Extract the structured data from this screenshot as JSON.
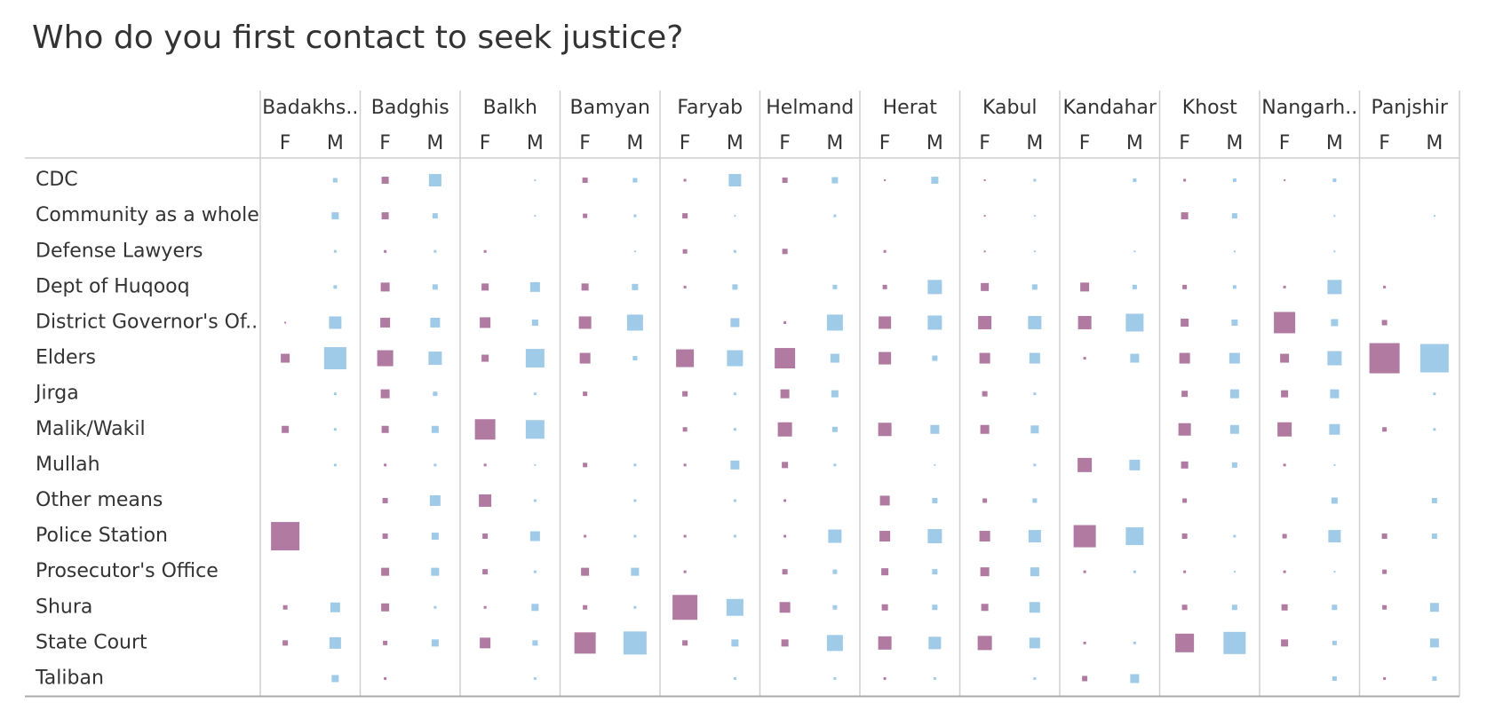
{
  "chart_data": {
    "type": "heatmap",
    "title": "Who do you first contact to seek justice?",
    "columns": [
      "Badakhs..",
      "Badghis",
      "Balkh",
      "Bamyan",
      "Faryab",
      "Helmand",
      "Herat",
      "Kabul",
      "Kandahar",
      "Khost",
      "Nangarh..",
      "Panjshir"
    ],
    "genders": [
      "F",
      "M"
    ],
    "rows": [
      "CDC",
      "Community as a whole",
      "Defense Lawyers",
      "Dept of Huqooq",
      "District Governor's Of..",
      "Elders",
      "Jirga",
      "Malik/Wakil",
      "Mullah",
      "Other means",
      "Police Station",
      "Prosecutor's Office",
      "Shura",
      "State Court",
      "Taliban"
    ],
    "colors": {
      "F": "#b07aa1",
      "M": "#a0cbe8",
      "grid": "#cfcfcf",
      "axis": "#aaaaaa"
    },
    "size_encoding": "square area proportional to share of respondents",
    "values": [
      [
        [
          0,
          5
        ],
        [
          8,
          14
        ],
        [
          0,
          2
        ],
        [
          6,
          5
        ],
        [
          3,
          14
        ],
        [
          6,
          7
        ],
        [
          2,
          8
        ],
        [
          2,
          3
        ],
        [
          0,
          4
        ],
        [
          3,
          4
        ],
        [
          2,
          4
        ],
        [
          0,
          0
        ]
      ],
      [
        [
          0,
          8
        ],
        [
          8,
          6
        ],
        [
          0,
          2
        ],
        [
          5,
          3
        ],
        [
          6,
          2
        ],
        [
          0,
          3
        ],
        [
          0,
          0
        ],
        [
          2,
          2
        ],
        [
          0,
          0
        ],
        [
          8,
          6
        ],
        [
          0,
          2
        ],
        [
          0,
          2
        ]
      ],
      [
        [
          0,
          3
        ],
        [
          3,
          3
        ],
        [
          3,
          0
        ],
        [
          0,
          2
        ],
        [
          5,
          3
        ],
        [
          6,
          0
        ],
        [
          3,
          0
        ],
        [
          2,
          2
        ],
        [
          0,
          2
        ],
        [
          0,
          2
        ],
        [
          0,
          2
        ],
        [
          0,
          0
        ]
      ],
      [
        [
          0,
          4
        ],
        [
          10,
          6
        ],
        [
          8,
          11
        ],
        [
          8,
          7
        ],
        [
          3,
          6
        ],
        [
          0,
          5
        ],
        [
          5,
          16
        ],
        [
          9,
          6
        ],
        [
          10,
          5
        ],
        [
          5,
          4
        ],
        [
          3,
          16
        ],
        [
          3,
          0
        ]
      ],
      [
        [
          2,
          14
        ],
        [
          11,
          11
        ],
        [
          12,
          7
        ],
        [
          14,
          18
        ],
        [
          0,
          10
        ],
        [
          3,
          18
        ],
        [
          14,
          16
        ],
        [
          15,
          15
        ],
        [
          15,
          20
        ],
        [
          9,
          7
        ],
        [
          24,
          8
        ],
        [
          6,
          0
        ]
      ],
      [
        [
          10,
          25
        ],
        [
          18,
          15
        ],
        [
          8,
          21
        ],
        [
          12,
          5
        ],
        [
          20,
          18
        ],
        [
          23,
          10
        ],
        [
          14,
          6
        ],
        [
          12,
          12
        ],
        [
          3,
          10
        ],
        [
          12,
          12
        ],
        [
          10,
          16
        ],
        [
          34,
          32
        ]
      ],
      [
        [
          0,
          3
        ],
        [
          10,
          5
        ],
        [
          0,
          3
        ],
        [
          5,
          0
        ],
        [
          6,
          3
        ],
        [
          10,
          8
        ],
        [
          0,
          0
        ],
        [
          6,
          3
        ],
        [
          0,
          0
        ],
        [
          7,
          10
        ],
        [
          8,
          10
        ],
        [
          0,
          3
        ]
      ],
      [
        [
          8,
          3
        ],
        [
          8,
          8
        ],
        [
          23,
          21
        ],
        [
          0,
          0
        ],
        [
          5,
          3
        ],
        [
          16,
          6
        ],
        [
          15,
          10
        ],
        [
          10,
          9
        ],
        [
          0,
          0
        ],
        [
          14,
          10
        ],
        [
          16,
          12
        ],
        [
          5,
          3
        ]
      ],
      [
        [
          0,
          3
        ],
        [
          3,
          3
        ],
        [
          3,
          2
        ],
        [
          5,
          3
        ],
        [
          3,
          10
        ],
        [
          7,
          3
        ],
        [
          0,
          2
        ],
        [
          0,
          3
        ],
        [
          16,
          12
        ],
        [
          8,
          6
        ],
        [
          3,
          2
        ],
        [
          0,
          0
        ]
      ],
      [
        [
          0,
          0
        ],
        [
          6,
          12
        ],
        [
          14,
          3
        ],
        [
          0,
          3
        ],
        [
          0,
          3
        ],
        [
          3,
          0
        ],
        [
          11,
          6
        ],
        [
          5,
          5
        ],
        [
          0,
          0
        ],
        [
          5,
          0
        ],
        [
          0,
          7
        ],
        [
          0,
          6
        ]
      ],
      [
        [
          32,
          0
        ],
        [
          6,
          8
        ],
        [
          6,
          11
        ],
        [
          3,
          3
        ],
        [
          3,
          3
        ],
        [
          3,
          15
        ],
        [
          12,
          16
        ],
        [
          12,
          14
        ],
        [
          25,
          20
        ],
        [
          6,
          3
        ],
        [
          5,
          14
        ],
        [
          6,
          6
        ]
      ],
      [
        [
          0,
          0
        ],
        [
          9,
          9
        ],
        [
          6,
          3
        ],
        [
          9,
          9
        ],
        [
          3,
          0
        ],
        [
          6,
          5
        ],
        [
          8,
          6
        ],
        [
          10,
          10
        ],
        [
          3,
          3
        ],
        [
          3,
          2
        ],
        [
          3,
          2
        ],
        [
          5,
          0
        ]
      ],
      [
        [
          5,
          11
        ],
        [
          9,
          3
        ],
        [
          3,
          8
        ],
        [
          5,
          3
        ],
        [
          28,
          19
        ],
        [
          12,
          5
        ],
        [
          7,
          6
        ],
        [
          8,
          12
        ],
        [
          0,
          0
        ],
        [
          6,
          6
        ],
        [
          7,
          6
        ],
        [
          5,
          10
        ]
      ],
      [
        [
          6,
          13
        ],
        [
          5,
          8
        ],
        [
          12,
          6
        ],
        [
          24,
          26
        ],
        [
          6,
          8
        ],
        [
          8,
          18
        ],
        [
          15,
          14
        ],
        [
          16,
          12
        ],
        [
          3,
          3
        ],
        [
          21,
          25
        ],
        [
          8,
          5
        ],
        [
          0,
          10
        ]
      ],
      [
        [
          0,
          8
        ],
        [
          3,
          0
        ],
        [
          0,
          3
        ],
        [
          0,
          0
        ],
        [
          0,
          3
        ],
        [
          0,
          3
        ],
        [
          3,
          3
        ],
        [
          0,
          3
        ],
        [
          6,
          10
        ],
        [
          0,
          0
        ],
        [
          0,
          5
        ],
        [
          3,
          5
        ]
      ]
    ]
  }
}
